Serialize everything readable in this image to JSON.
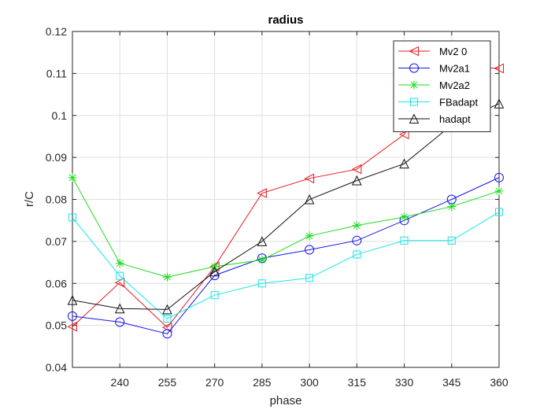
{
  "chart_data": {
    "type": "line",
    "title": "radius",
    "xlabel": "phase",
    "ylabel": "r/C",
    "xlim": [
      225,
      360
    ],
    "ylim": [
      0.04,
      0.12
    ],
    "xticks": [
      240,
      255,
      270,
      285,
      300,
      315,
      330,
      345,
      360
    ],
    "xtick_labels": [
      "240",
      "255",
      "270",
      "285",
      "300",
      "315",
      "330",
      "345",
      "360"
    ],
    "yticks": [
      0.04,
      0.05,
      0.06,
      0.07,
      0.08,
      0.09,
      0.1,
      0.11,
      0.12
    ],
    "ytick_labels": [
      "0.04",
      "0.05",
      "0.06",
      "0.07",
      "0.08",
      "0.09",
      "0.1",
      "0.11",
      "0.12"
    ],
    "grid": true,
    "legend_position": "top-right",
    "x": [
      225,
      240,
      255,
      270,
      285,
      300,
      315,
      330,
      345,
      360
    ],
    "series": [
      {
        "name": "Mv2 0",
        "color": "#e8191f",
        "marker": "triangle-left",
        "values": [
          0.0497,
          0.0602,
          0.0495,
          0.064,
          0.0815,
          0.085,
          0.0872,
          0.0955,
          0.1118,
          0.1112
        ]
      },
      {
        "name": "Mv2a1",
        "color": "#1515e6",
        "marker": "circle",
        "values": [
          0.0522,
          0.0508,
          0.048,
          0.0619,
          0.066,
          0.068,
          0.0702,
          0.075,
          0.08,
          0.0852
        ]
      },
      {
        "name": "Mv2a2",
        "color": "#1ddd1d",
        "marker": "asterisk",
        "values": [
          0.0852,
          0.0648,
          0.0615,
          0.064,
          0.0656,
          0.0713,
          0.0738,
          0.0758,
          0.0783,
          0.082
        ]
      },
      {
        "name": "FBadapt",
        "color": "#14e6e6",
        "marker": "square",
        "values": [
          0.0757,
          0.0618,
          0.0516,
          0.0572,
          0.06,
          0.0613,
          0.0669,
          0.0702,
          0.0702,
          0.077
        ]
      },
      {
        "name": "hadapt",
        "color": "#111111",
        "marker": "triangle-up",
        "values": [
          0.056,
          0.054,
          0.0538,
          0.0628,
          0.07,
          0.08,
          0.0845,
          0.0885,
          0.0977,
          0.1028
        ]
      }
    ]
  }
}
